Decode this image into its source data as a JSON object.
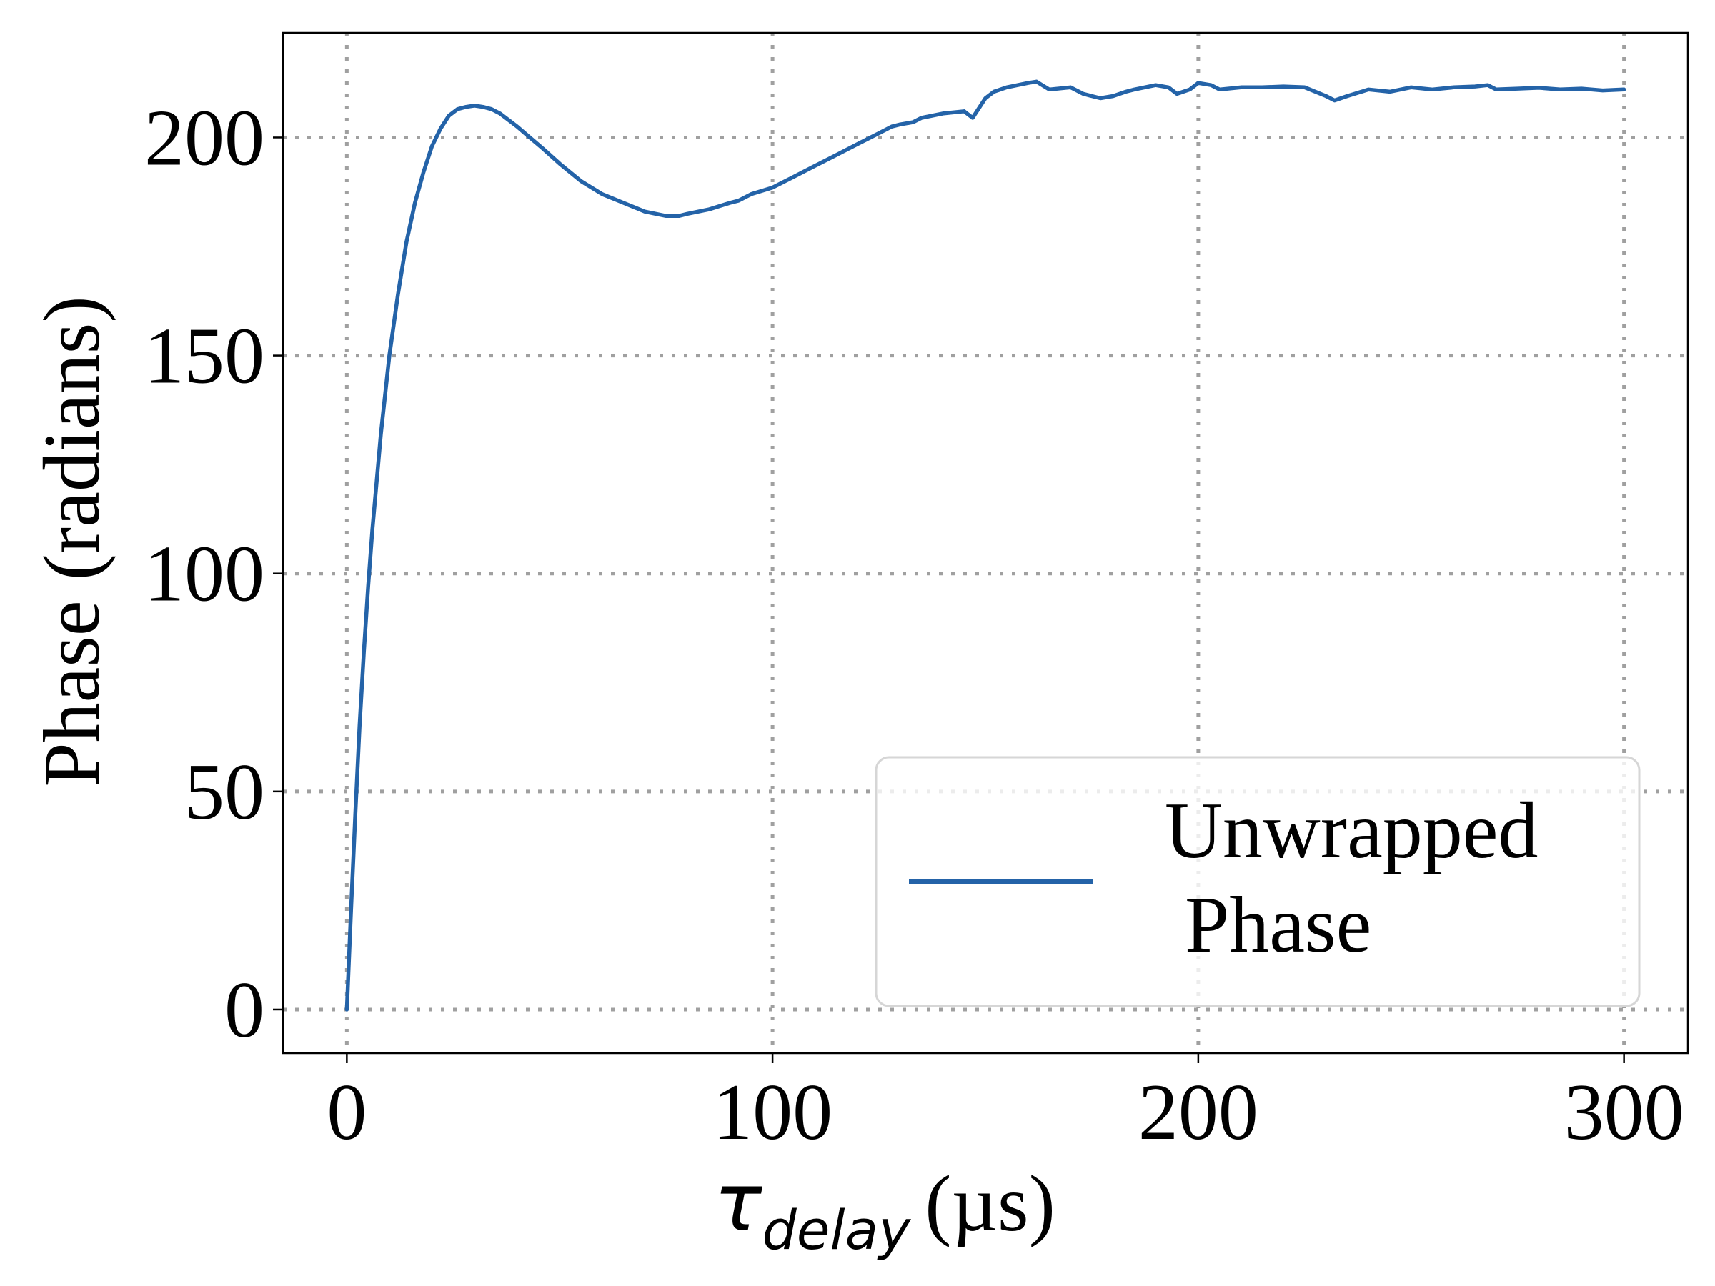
{
  "chart_data": {
    "type": "line",
    "xlabel": {
      "symbol": "τ",
      "subscript": "delay",
      "unit": "(µs)"
    },
    "ylabel": "Phase (radians)",
    "xlim": [
      -15,
      315
    ],
    "ylim": [
      -10,
      224
    ],
    "xticks": [
      0,
      100,
      200,
      300
    ],
    "yticks": [
      0,
      50,
      100,
      150,
      200
    ],
    "grid": true,
    "legend_position": "lower-right",
    "legend": [
      "Unwrapped",
      " Phase"
    ],
    "series": [
      {
        "name": "Unwrapped\n Phase",
        "color": "#2463a8",
        "x": [
          0,
          1,
          2,
          3,
          4,
          5,
          6,
          8,
          10,
          12,
          14,
          16,
          18,
          20,
          22,
          24,
          26,
          28,
          30,
          32,
          34,
          36,
          38,
          40,
          43,
          46,
          50,
          55,
          60,
          65,
          70,
          75,
          78,
          80,
          85,
          90,
          92,
          95,
          100,
          105,
          110,
          115,
          120,
          125,
          128,
          130,
          133,
          135,
          140,
          145,
          147,
          150,
          152,
          155,
          160,
          162,
          165,
          170,
          173,
          175,
          177,
          180,
          183,
          185,
          190,
          193,
          195,
          198,
          200,
          203,
          205,
          210,
          215,
          220,
          225,
          230,
          232,
          235,
          240,
          245,
          250,
          255,
          260,
          265,
          268,
          270,
          275,
          280,
          285,
          290,
          295,
          300
        ],
        "y": [
          0,
          23,
          45,
          65,
          82,
          97,
          110,
          132,
          150,
          164,
          176,
          185,
          192,
          198,
          202,
          205,
          206.5,
          207,
          207.3,
          207,
          206.5,
          205.5,
          204,
          202.5,
          200,
          197.5,
          194,
          190,
          187,
          185,
          183,
          182,
          182,
          182.5,
          183.5,
          185,
          185.5,
          187,
          188.5,
          191,
          193.5,
          196,
          198.5,
          201,
          202.5,
          203,
          203.5,
          204.5,
          205.5,
          206,
          204.5,
          209,
          210.5,
          211.5,
          212.5,
          212.8,
          211,
          211.5,
          210,
          209.5,
          209,
          209.5,
          210.5,
          211,
          212,
          211.5,
          210,
          211,
          212.5,
          212,
          211,
          211.5,
          211.5,
          211.7,
          211.5,
          209.5,
          208.5,
          209.5,
          211,
          210.5,
          211.5,
          211,
          211.5,
          211.7,
          212,
          211,
          211.2,
          211.4,
          211,
          211.2,
          210.8,
          211
        ]
      }
    ]
  }
}
